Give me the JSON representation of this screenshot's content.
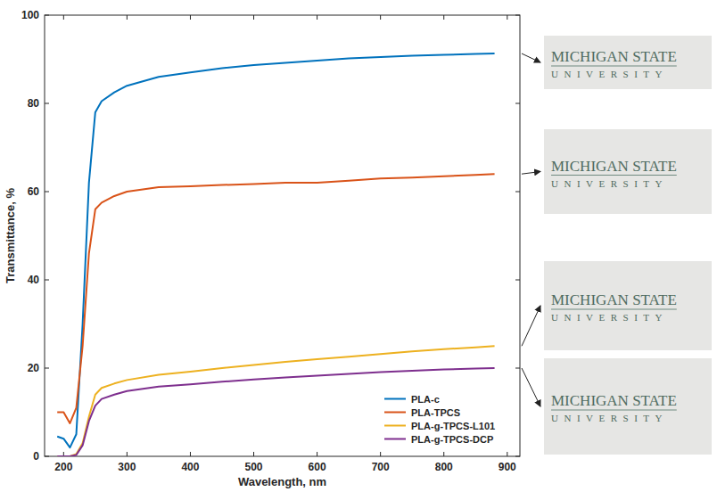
{
  "chart_data": {
    "type": "line",
    "x_label": "Wavelength, nm",
    "y_label": "Transmittance, %",
    "xlim": [
      170,
      920
    ],
    "xticks": [
      200,
      300,
      400,
      500,
      600,
      700,
      800,
      900
    ],
    "ylim": [
      0,
      100
    ],
    "yticks": [
      0,
      20,
      40,
      60,
      80,
      100
    ],
    "grid": false,
    "legend": "lower right",
    "x": [
      190,
      200,
      210,
      220,
      230,
      240,
      250,
      260,
      280,
      300,
      350,
      400,
      450,
      500,
      550,
      600,
      650,
      700,
      750,
      800,
      850,
      880
    ],
    "series": [
      {
        "name": "PLA-c",
        "color": "#0072BD",
        "values": [
          4.5,
          4,
          2,
          5,
          30,
          62,
          78,
          80.5,
          82.5,
          84,
          86,
          87,
          88,
          88.7,
          89.2,
          89.7,
          90.2,
          90.5,
          90.8,
          91,
          91.2,
          91.3
        ]
      },
      {
        "name": "PLA-TPCS",
        "color": "#D95319",
        "values": [
          10,
          10,
          7.5,
          11,
          25,
          46,
          56,
          57.5,
          59,
          60,
          61,
          61.2,
          61.5,
          61.7,
          62,
          62,
          62.5,
          63,
          63.2,
          63.5,
          63.8,
          64
        ]
      },
      {
        "name": "PLA-g-TPCS-L101",
        "color": "#EDB120",
        "values": [
          0,
          0,
          0,
          0.5,
          3,
          9,
          14,
          15.5,
          16.5,
          17.3,
          18.5,
          19.2,
          20,
          20.7,
          21.4,
          22,
          22.6,
          23.2,
          23.8,
          24.3,
          24.7,
          25
        ]
      },
      {
        "name": "PLA-g-TPCS-DCP",
        "color": "#7E2F8E",
        "values": [
          0,
          0,
          0,
          0.3,
          2.5,
          8,
          11.5,
          13,
          14,
          14.8,
          15.8,
          16.3,
          16.9,
          17.4,
          17.9,
          18.3,
          18.7,
          19.1,
          19.4,
          19.7,
          19.9,
          20
        ]
      }
    ],
    "annotations": [
      {
        "lines": [
          "MICHIGAN STATE",
          "UNIVERSITY"
        ]
      },
      {
        "lines": [
          "MICHIGAN STATE",
          "UNIVERSITY"
        ]
      },
      {
        "lines": [
          "MICHIGAN STATE",
          "UNIVERSITY"
        ]
      },
      {
        "lines": [
          "MICHIGAN STATE",
          "UNIVERSITY"
        ]
      }
    ]
  }
}
